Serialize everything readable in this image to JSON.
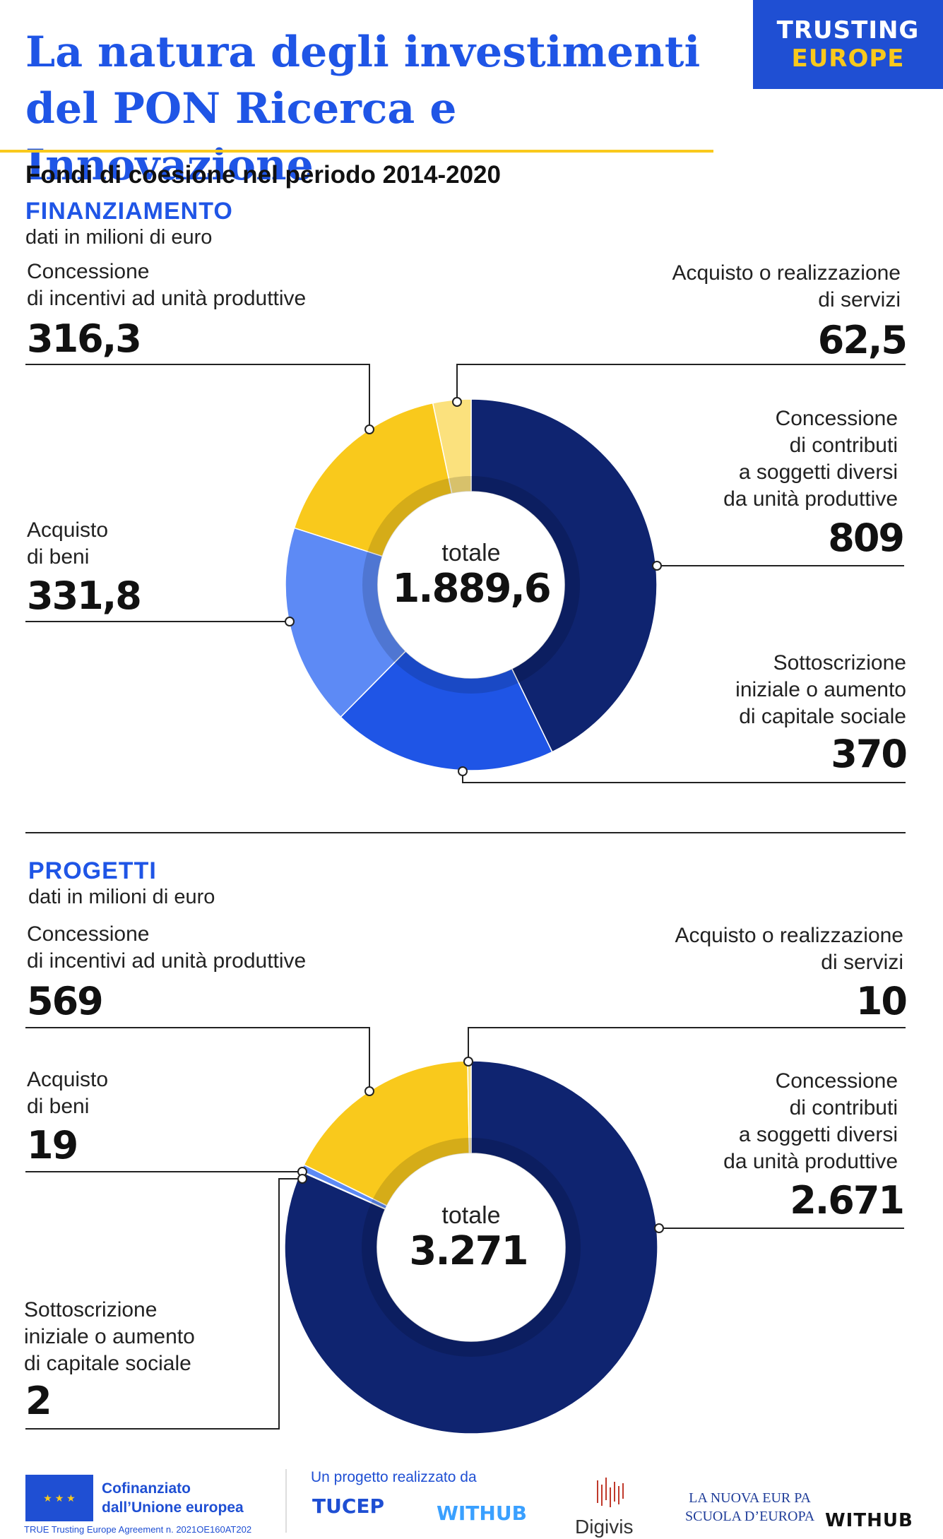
{
  "header": {
    "title_line1": "La natura degli investimenti",
    "title_line2": "del PON Ricerca e Innovazione",
    "brand_line1": "TRUSTING",
    "brand_line2": "EUROPE",
    "subtitle": "Fondi di coesione nel periodo 2014-2020"
  },
  "colors": {
    "navy": "#0f2470",
    "blue": "#1f55e6",
    "light_blue": "#5d8af5",
    "yellow": "#f9c91c",
    "pale_yellow": "#fbe17d",
    "title_blue": "#1f55e6"
  },
  "chart_data": [
    {
      "type": "donut",
      "section": "FINANZIAMENTO",
      "unit": "dati in milioni di euro",
      "center_label": "totale",
      "total": 1889.6,
      "total_text": "1.889,6",
      "slices": [
        {
          "label": "Concessione di contributi a soggetti diversi da unità produttive",
          "label_lines": [
            "Concessione",
            "di contributi",
            "a soggetti diversi",
            "da unità produttive"
          ],
          "value": 809,
          "value_text": "809",
          "color": "#0f2470"
        },
        {
          "label": "Sottoscrizione iniziale o aumento di capitale sociale",
          "label_lines": [
            "Sottoscrizione",
            "iniziale o aumento",
            "di capitale sociale"
          ],
          "value": 370,
          "value_text": "370",
          "color": "#1f55e6"
        },
        {
          "label": "Acquisto di beni",
          "label_lines": [
            "Acquisto",
            "di beni"
          ],
          "value": 331.8,
          "value_text": "331,8",
          "color": "#5d8af5"
        },
        {
          "label": "Concessione di incentivi ad unità produttive",
          "label_lines": [
            "Concessione",
            "di incentivi ad unità produttive"
          ],
          "value": 316.3,
          "value_text": "316,3",
          "color": "#f9c91c"
        },
        {
          "label": "Acquisto o realizzazione di servizi",
          "label_lines": [
            "Acquisto  o realizzazione",
            "di servizi"
          ],
          "value": 62.5,
          "value_text": "62,5",
          "color": "#fbe17d"
        }
      ]
    },
    {
      "type": "donut",
      "section": "PROGETTI",
      "unit": "dati in milioni di euro",
      "center_label": "totale",
      "total": 3271,
      "total_text": "3.271",
      "slices": [
        {
          "label": "Concessione di contributi a soggetti diversi da unità produttive",
          "label_lines": [
            "Concessione",
            "di contributi",
            "a soggetti diversi",
            "da unità produttive"
          ],
          "value": 2671,
          "value_text": "2.671",
          "color": "#0f2470"
        },
        {
          "label": "Sottoscrizione iniziale o aumento di capitale sociale",
          "label_lines": [
            "Sottoscrizione",
            "iniziale o aumento",
            "di capitale sociale"
          ],
          "value": 2,
          "value_text": "2",
          "color": "#1f55e6"
        },
        {
          "label": "Acquisto di beni",
          "label_lines": [
            "Acquisto",
            "di beni"
          ],
          "value": 19,
          "value_text": "19",
          "color": "#5d8af5"
        },
        {
          "label": "Concessione di incentivi ad unità produttive",
          "label_lines": [
            "Concessione",
            "di incentivi ad unità produttive"
          ],
          "value": 569,
          "value_text": "569",
          "color": "#f9c91c"
        },
        {
          "label": "Acquisto o realizzazione di servizi",
          "label_lines": [
            "Acquisto o realizzazione",
            "di servizi"
          ],
          "value": 10,
          "value_text": "10",
          "color": "#fbe17d"
        }
      ]
    }
  ],
  "footer": {
    "cofin_line1": "Cofinanziato",
    "cofin_line2": "dall’Unione europea",
    "agreement": "TRUE Trusting Europe Agreement n. 2021OE160AT202",
    "project": "Un progetto realizzato da",
    "tucep": "TUCEP",
    "withub1": "WITHUB",
    "digivis": "Digivis",
    "lne_line1": "LA NUOVA EUR PA",
    "lne_line2": "SCUOLA D’EUROPA",
    "withub2": "WITHUB"
  }
}
